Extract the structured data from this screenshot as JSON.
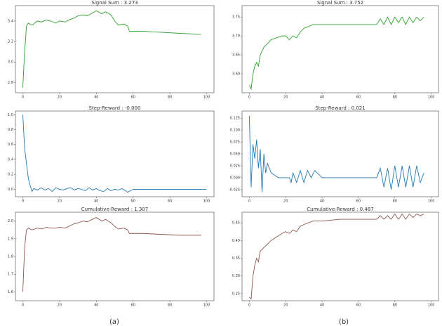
{
  "captions": [
    "(a)",
    "(b)"
  ],
  "chart_data": [
    {
      "type": "line",
      "title": "Signal Sum : 3.273",
      "color": "#2ca02c",
      "x": [
        0,
        1,
        2,
        3,
        5,
        8,
        10,
        13,
        15,
        18,
        20,
        23,
        25,
        28,
        30,
        33,
        35,
        38,
        40,
        43,
        45,
        48,
        50,
        52,
        55,
        57,
        58,
        65,
        75,
        85,
        97
      ],
      "values": [
        2.75,
        3.1,
        3.35,
        3.38,
        3.36,
        3.4,
        3.39,
        3.41,
        3.4,
        3.38,
        3.4,
        3.39,
        3.41,
        3.43,
        3.45,
        3.46,
        3.45,
        3.48,
        3.5,
        3.47,
        3.49,
        3.46,
        3.4,
        3.36,
        3.37,
        3.35,
        3.3,
        3.3,
        3.29,
        3.28,
        3.27
      ],
      "xlim": [
        -4,
        104
      ],
      "xticks": [
        0,
        20,
        40,
        60,
        80,
        100
      ],
      "ylim": [
        2.7,
        3.55
      ],
      "yticks": [
        2.8,
        {
          "value": 3,
          "label": "3.0"
        },
        3.2,
        3.4
      ]
    },
    {
      "type": "line",
      "title": "Signal Sum : 3.752",
      "color": "#2ca02c",
      "x": [
        0,
        1,
        2,
        3,
        4,
        5,
        6,
        8,
        10,
        12,
        15,
        18,
        20,
        22,
        24,
        26,
        28,
        30,
        35,
        40,
        50,
        60,
        70,
        72,
        74,
        76,
        78,
        80,
        82,
        84,
        86,
        88,
        90,
        92,
        94,
        96
      ],
      "values": [
        3.57,
        3.56,
        3.6,
        3.62,
        3.63,
        3.62,
        3.65,
        3.67,
        3.68,
        3.69,
        3.695,
        3.7,
        3.7,
        3.69,
        3.7,
        3.695,
        3.71,
        3.72,
        3.73,
        3.73,
        3.73,
        3.73,
        3.73,
        3.745,
        3.73,
        3.75,
        3.73,
        3.75,
        3.735,
        3.75,
        3.73,
        3.75,
        3.735,
        3.75,
        3.74,
        3.75
      ],
      "xlim": [
        -4,
        104
      ],
      "xticks": [
        0,
        20,
        40,
        60,
        80,
        100
      ],
      "ylim": [
        3.55,
        3.78
      ],
      "yticks": [
        {
          "value": 3.6,
          "label": "3.60"
        },
        3.65,
        {
          "value": 3.7,
          "label": "3.70"
        },
        3.75
      ]
    },
    {
      "type": "line",
      "title": "Step-Reward : -0.000",
      "color": "#1f77b4",
      "x": [
        0,
        1,
        2,
        3,
        4,
        5,
        6,
        8,
        10,
        12,
        14,
        16,
        18,
        20,
        22,
        24,
        26,
        28,
        30,
        32,
        34,
        36,
        38,
        40,
        42,
        44,
        46,
        48,
        50,
        52,
        54,
        56,
        57,
        60,
        80,
        100
      ],
      "values": [
        1.0,
        0.55,
        0.35,
        0.15,
        0.05,
        -0.03,
        0.01,
        -0.01,
        0.02,
        -0.01,
        0.01,
        -0.03,
        0.02,
        0.0,
        -0.01,
        0.01,
        0.02,
        -0.01,
        0.01,
        0.0,
        -0.02,
        0.02,
        -0.01,
        0.01,
        -0.02,
        -0.03,
        0.01,
        -0.02,
        0.0,
        -0.01,
        0.01,
        -0.02,
        -0.04,
        0.0,
        0.0,
        0.0
      ],
      "xlim": [
        -4,
        104
      ],
      "xticks": [
        0,
        20,
        40,
        60,
        80,
        100
      ],
      "ylim": [
        -0.1,
        1.05
      ],
      "yticks": [
        {
          "value": 0,
          "label": "0.0"
        },
        0.2,
        0.4,
        0.6,
        0.8,
        {
          "value": 1,
          "label": "1.0"
        }
      ]
    },
    {
      "type": "line",
      "title": "Step-Reward : 0.021",
      "color": "#1f77b4",
      "x": [
        0,
        1,
        2,
        3,
        4,
        5,
        6,
        7,
        8,
        9,
        10,
        12,
        14,
        16,
        18,
        20,
        22,
        23,
        24,
        26,
        28,
        30,
        32,
        34,
        36,
        40,
        50,
        60,
        70,
        72,
        74,
        76,
        78,
        80,
        82,
        84,
        86,
        88,
        90,
        92,
        94,
        96
      ],
      "values": [
        0.13,
        -0.02,
        0.07,
        0.04,
        0.08,
        0.02,
        0.06,
        -0.03,
        0.05,
        0.01,
        0.03,
        0.01,
        0.005,
        0.0,
        0.0,
        0.0,
        0.0,
        -0.01,
        0.01,
        -0.01,
        0.015,
        -0.01,
        0.015,
        0.0,
        0.015,
        0.0,
        0.0,
        0.0,
        0.0,
        0.02,
        -0.02,
        0.02,
        -0.025,
        0.025,
        -0.02,
        0.025,
        -0.02,
        0.025,
        -0.02,
        0.025,
        -0.01,
        0.01
      ],
      "xlim": [
        -4,
        104
      ],
      "xticks": [
        0,
        20,
        40,
        60,
        80,
        100
      ],
      "ylim": [
        -0.04,
        0.14
      ],
      "yticks": [
        -0.025,
        {
          "value": 0,
          "label": "0.000"
        },
        0.025,
        {
          "value": 0.05,
          "label": "0.050"
        },
        0.075,
        {
          "value": 0.1,
          "label": "0.100"
        },
        0.125
      ]
    },
    {
      "type": "line",
      "title": "Cumulative-Reward : 1.307",
      "color": "#8c564b",
      "x": [
        0,
        1,
        2,
        3,
        5,
        8,
        10,
        13,
        15,
        18,
        20,
        23,
        25,
        28,
        30,
        33,
        35,
        38,
        40,
        43,
        45,
        48,
        50,
        52,
        55,
        57,
        58,
        65,
        75,
        85,
        97
      ],
      "values": [
        1.6,
        1.85,
        1.95,
        1.96,
        1.95,
        1.96,
        1.955,
        1.965,
        1.96,
        1.96,
        1.965,
        1.96,
        1.97,
        1.985,
        1.99,
        2.0,
        1.995,
        2.01,
        2.02,
        2.0,
        2.01,
        1.99,
        1.97,
        1.955,
        1.96,
        1.95,
        1.93,
        1.93,
        1.925,
        1.92,
        1.92
      ],
      "xlim": [
        -4,
        104
      ],
      "xticks": [
        0,
        20,
        40,
        60,
        80,
        100
      ],
      "ylim": [
        1.55,
        2.05
      ],
      "yticks": [
        1.6,
        1.7,
        1.8,
        1.9,
        {
          "value": 2,
          "label": "2.0"
        }
      ]
    },
    {
      "type": "line",
      "title": "Cumulative-Reward : 0.487",
      "color": "#8c564b",
      "x": [
        0,
        1,
        2,
        3,
        4,
        5,
        6,
        8,
        10,
        12,
        15,
        18,
        20,
        22,
        24,
        26,
        28,
        30,
        35,
        40,
        50,
        60,
        70,
        72,
        74,
        76,
        78,
        80,
        82,
        84,
        86,
        88,
        90,
        92,
        94,
        96
      ],
      "values": [
        0.24,
        0.235,
        0.3,
        0.33,
        0.35,
        0.34,
        0.37,
        0.38,
        0.39,
        0.4,
        0.41,
        0.42,
        0.425,
        0.42,
        0.43,
        0.425,
        0.44,
        0.445,
        0.455,
        0.455,
        0.46,
        0.46,
        0.46,
        0.47,
        0.46,
        0.47,
        0.46,
        0.475,
        0.46,
        0.475,
        0.46,
        0.475,
        0.465,
        0.475,
        0.47,
        0.475
      ],
      "xlim": [
        -4,
        104
      ],
      "xticks": [
        0,
        20,
        40,
        60,
        80,
        100
      ],
      "ylim": [
        0.23,
        0.48
      ],
      "yticks": [
        0.25,
        {
          "value": 0.3,
          "label": "0.30"
        },
        0.35,
        {
          "value": 0.4,
          "label": "0.40"
        },
        0.45
      ]
    }
  ]
}
